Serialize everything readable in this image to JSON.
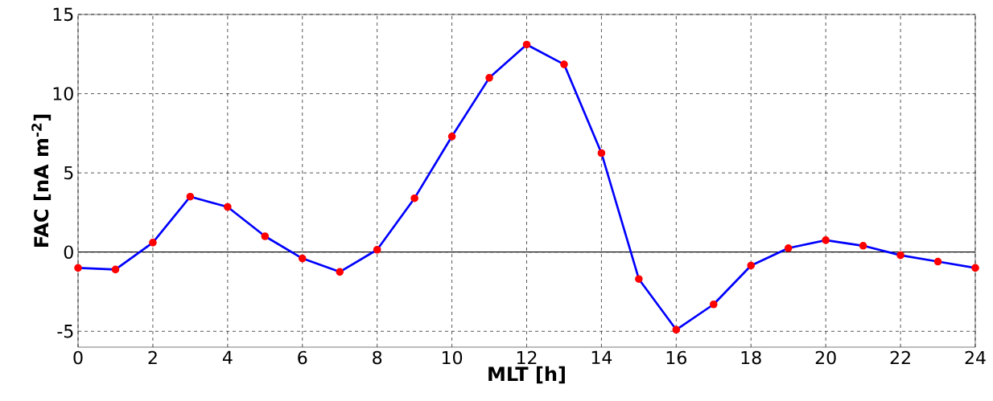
{
  "chart_data": {
    "type": "line",
    "xlabel": "MLT  [h]",
    "ylabel": "FAC  [nA m$^{-2}$]",
    "x": [
      0,
      1,
      2,
      3,
      4,
      5,
      6,
      7,
      8,
      9,
      10,
      11,
      12,
      13,
      14,
      15,
      16,
      17,
      18,
      19,
      20,
      21,
      22,
      23,
      24
    ],
    "series": [
      {
        "color": "#0000ff",
        "values": [
          -1.0,
          -1.1,
          0.6,
          3.5,
          2.85,
          1.0,
          -0.4,
          -1.25,
          0.15,
          3.4,
          7.3,
          11.0,
          13.1,
          11.85,
          6.25,
          -1.7,
          -4.9,
          -3.3,
          -0.85,
          0.25,
          0.75,
          0.4,
          -0.2,
          -0.6,
          -1.0
        ]
      }
    ],
    "xlim": [
      0,
      24
    ],
    "xticks": [
      0,
      2,
      4,
      6,
      8,
      10,
      12,
      14,
      16,
      18,
      20,
      22,
      24
    ],
    "ylim": [
      -6,
      15
    ],
    "yticks": [
      -5,
      0,
      5,
      10,
      15
    ],
    "ref_lines": [
      {
        "axis": "y",
        "value": 0,
        "color": "#000000"
      }
    ],
    "grid": true,
    "marker": "circle",
    "line_style": "solid"
  }
}
